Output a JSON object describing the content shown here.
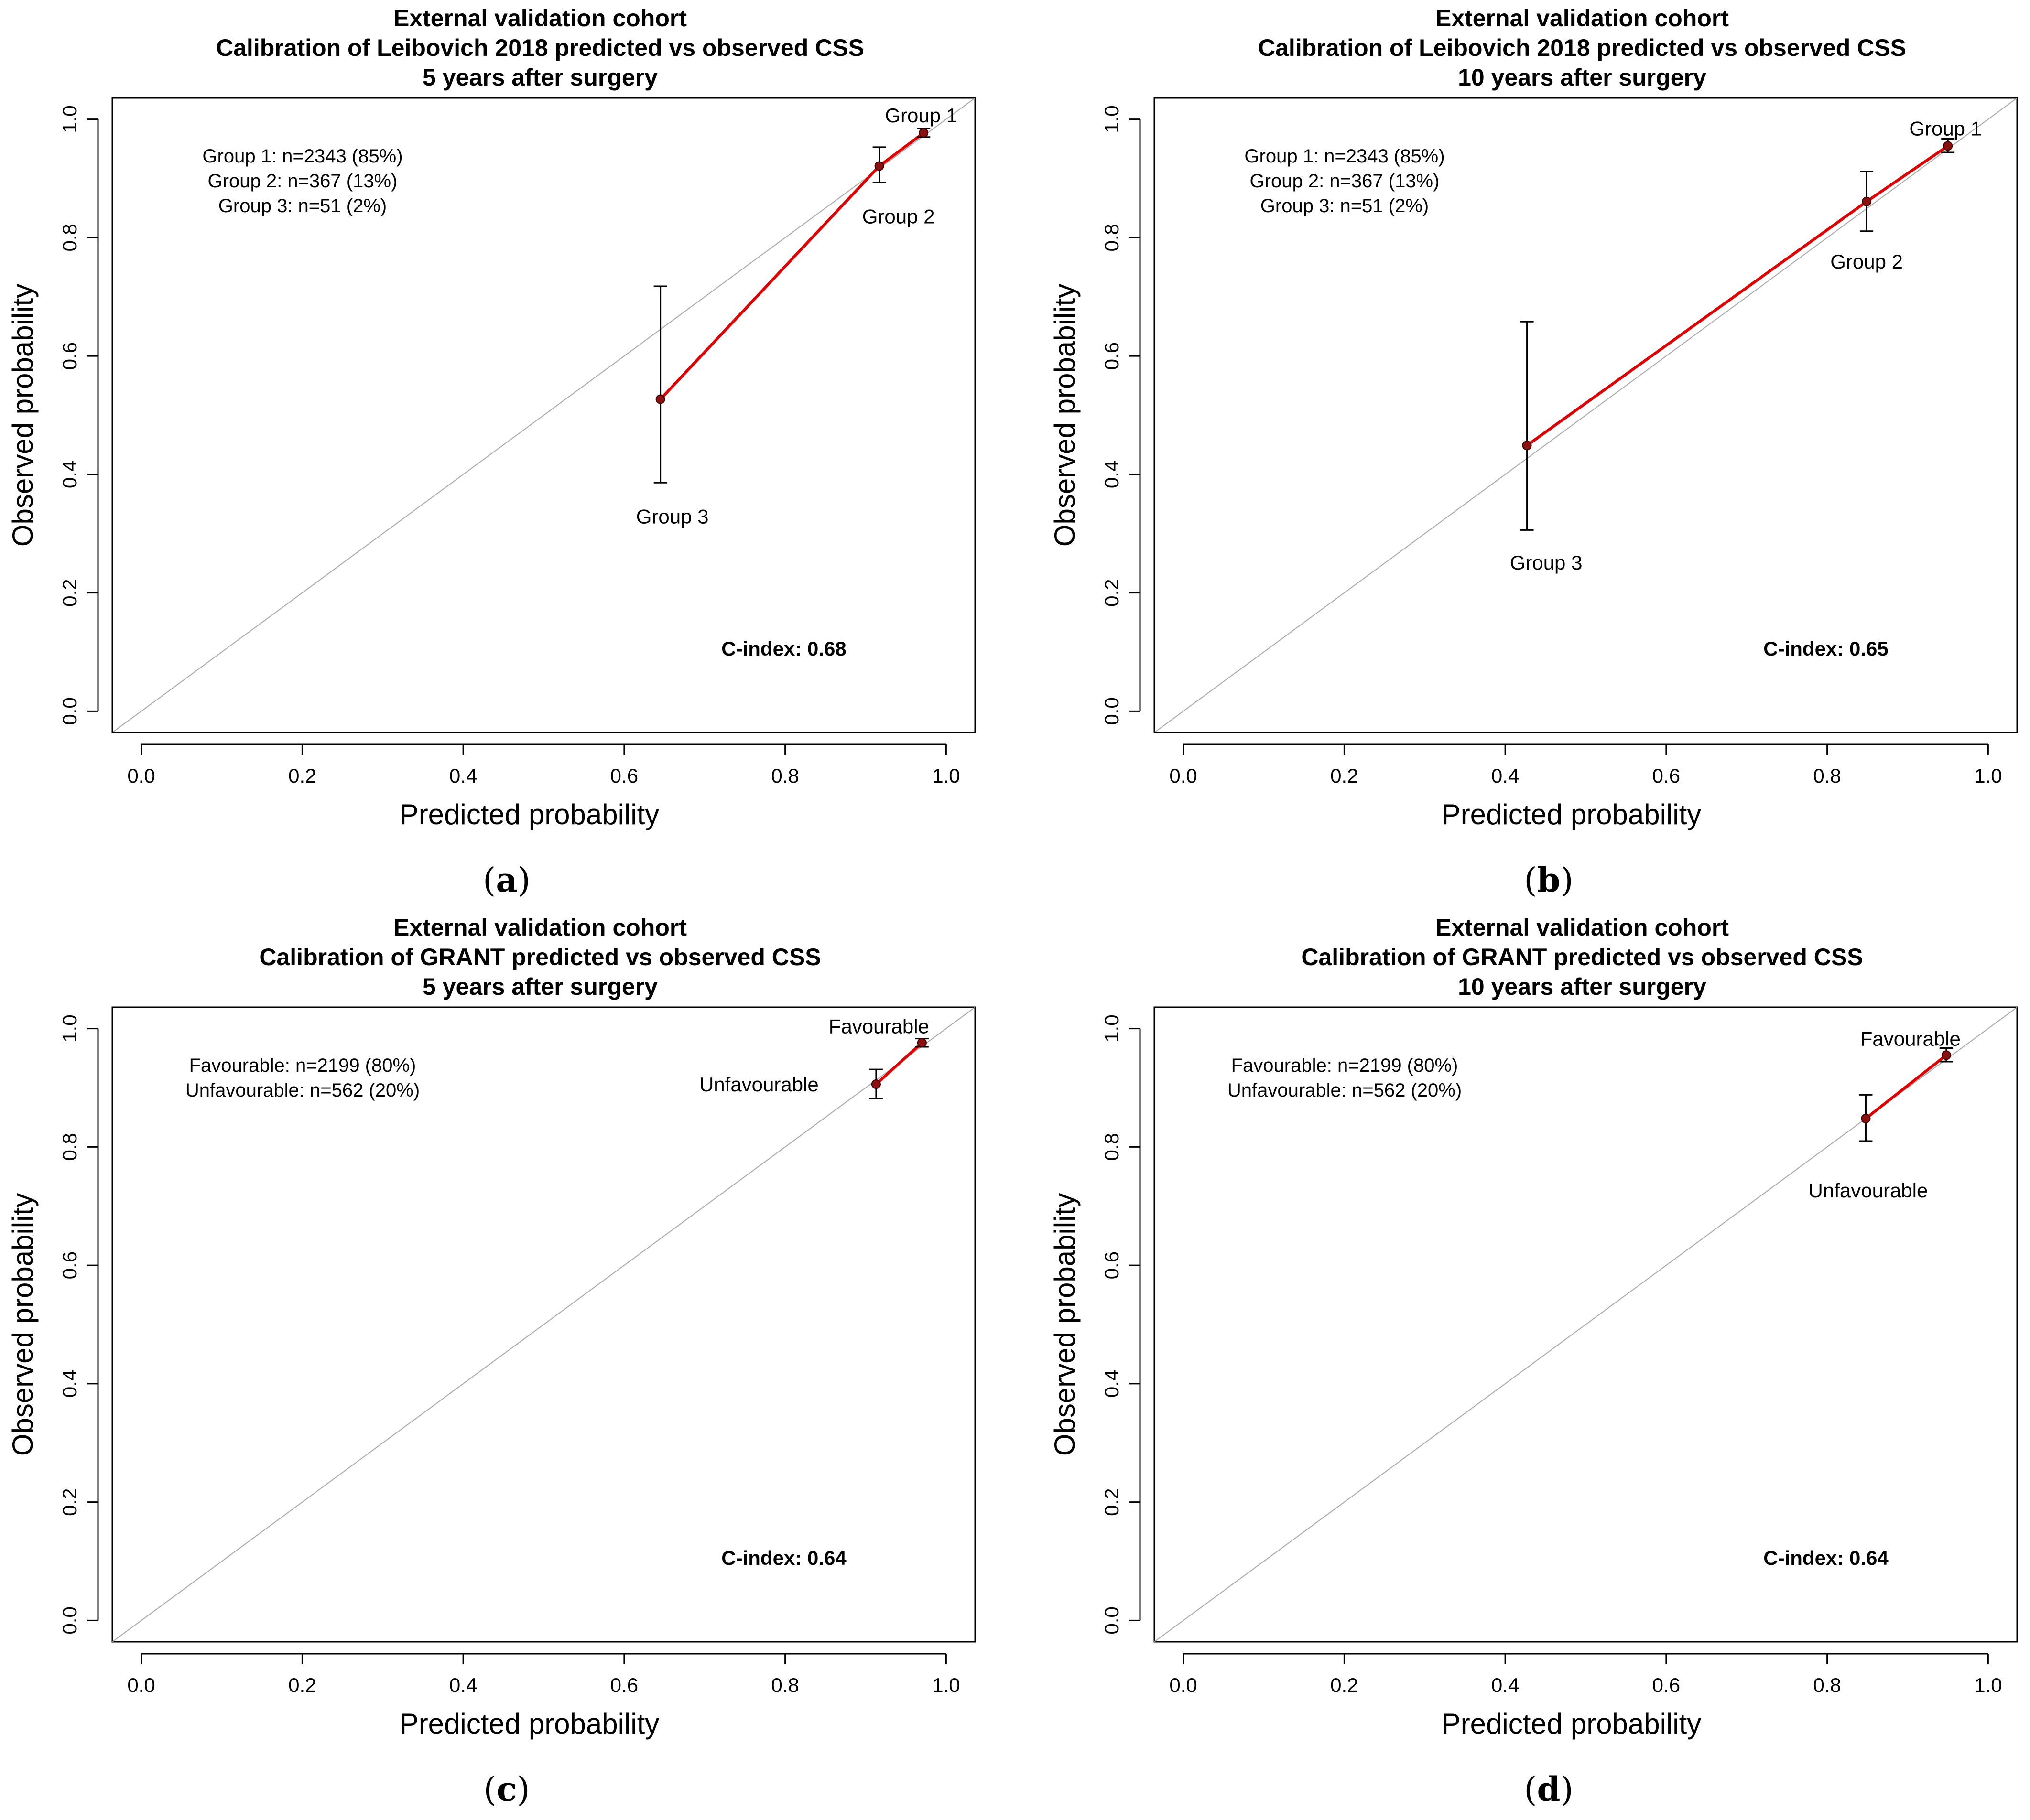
{
  "chart_data": [
    {
      "id": "a",
      "type": "scatter",
      "caption_letter": "a",
      "title_lines": [
        "External validation cohort",
        "Calibration of Leibovich 2018 predicted vs observed CSS",
        "5 years after surgery"
      ],
      "xlabel": "Predicted probability",
      "ylabel": "Observed probability",
      "xlim": [
        0.0,
        1.0
      ],
      "ylim": [
        0.0,
        1.0
      ],
      "x_ticks": [
        "0.0",
        "0.2",
        "0.4",
        "0.6",
        "0.8",
        "1.0"
      ],
      "y_ticks": [
        "0.0",
        "0.2",
        "0.4",
        "0.6",
        "0.8",
        "1.0"
      ],
      "reference_line": "y = x",
      "legend_lines": [
        "Group 1: n=2343 (85%)",
        "Group 2: n=367 (13%)",
        "Group 3: n=51 (2%)"
      ],
      "c_index": "C-index: 0.68",
      "points": [
        {
          "label": "Group 3",
          "x": 0.645,
          "y": 0.527,
          "lo": 0.386,
          "hi": 0.718
        },
        {
          "label": "Group 2",
          "x": 0.917,
          "y": 0.921,
          "lo": 0.893,
          "hi": 0.953
        },
        {
          "label": "Group 1",
          "x": 0.972,
          "y": 0.977,
          "lo": 0.97,
          "hi": 0.984
        }
      ]
    },
    {
      "id": "b",
      "type": "scatter",
      "caption_letter": "b",
      "title_lines": [
        "External validation cohort",
        "Calibration of Leibovich 2018 predicted vs observed CSS",
        "10 years after surgery"
      ],
      "xlabel": "Predicted probability",
      "ylabel": "Observed probability",
      "xlim": [
        0.0,
        1.0
      ],
      "ylim": [
        0.0,
        1.0
      ],
      "x_ticks": [
        "0.0",
        "0.2",
        "0.4",
        "0.6",
        "0.8",
        "1.0"
      ],
      "y_ticks": [
        "0.0",
        "0.2",
        "0.4",
        "0.6",
        "0.8",
        "1.0"
      ],
      "reference_line": "y = x",
      "legend_lines": [
        "Group 1: n=2343 (85%)",
        "Group 2: n=367 (13%)",
        "Group 3: n=51 (2%)"
      ],
      "c_index": "C-index: 0.65",
      "points": [
        {
          "label": "Group 3",
          "x": 0.427,
          "y": 0.449,
          "lo": 0.306,
          "hi": 0.658
        },
        {
          "label": "Group 2",
          "x": 0.849,
          "y": 0.861,
          "lo": 0.811,
          "hi": 0.912
        },
        {
          "label": "Group 1",
          "x": 0.95,
          "y": 0.955,
          "lo": 0.944,
          "hi": 0.967
        }
      ]
    },
    {
      "id": "c",
      "type": "scatter",
      "caption_letter": "c",
      "title_lines": [
        "External validation cohort",
        "Calibration of GRANT predicted vs observed CSS",
        "5 years after surgery"
      ],
      "xlabel": "Predicted probability",
      "ylabel": "Observed probability",
      "xlim": [
        0.0,
        1.0
      ],
      "ylim": [
        0.0,
        1.0
      ],
      "x_ticks": [
        "0.0",
        "0.2",
        "0.4",
        "0.6",
        "0.8",
        "1.0"
      ],
      "y_ticks": [
        "0.0",
        "0.2",
        "0.4",
        "0.6",
        "0.8",
        "1.0"
      ],
      "reference_line": "y = x",
      "legend_lines": [
        "Favourable: n=2199 (80%)",
        "Unfavourable: n=562 (20%)"
      ],
      "c_index": "C-index: 0.64",
      "points": [
        {
          "label": "Unfavourable",
          "x": 0.913,
          "y": 0.906,
          "lo": 0.882,
          "hi": 0.931
        },
        {
          "label": "Favourable",
          "x": 0.97,
          "y": 0.976,
          "lo": 0.969,
          "hi": 0.983
        }
      ]
    },
    {
      "id": "d",
      "type": "scatter",
      "caption_letter": "d",
      "title_lines": [
        "External validation cohort",
        "Calibration of GRANT predicted vs observed CSS",
        "10 years after surgery"
      ],
      "xlabel": "Predicted probability",
      "ylabel": "Observed probability",
      "xlim": [
        0.0,
        1.0
      ],
      "ylim": [
        0.0,
        1.0
      ],
      "x_ticks": [
        "0.0",
        "0.2",
        "0.4",
        "0.6",
        "0.8",
        "1.0"
      ],
      "y_ticks": [
        "0.0",
        "0.2",
        "0.4",
        "0.6",
        "0.8",
        "1.0"
      ],
      "reference_line": "y = x",
      "legend_lines": [
        "Favourable: n=2199 (80%)",
        "Unfavourable: n=562 (20%)"
      ],
      "c_index": "C-index: 0.64",
      "points": [
        {
          "label": "Unfavourable",
          "x": 0.848,
          "y": 0.848,
          "lo": 0.81,
          "hi": 0.888
        },
        {
          "label": "Favourable",
          "x": 0.948,
          "y": 0.955,
          "lo": 0.944,
          "hi": 0.967
        }
      ]
    }
  ],
  "colors": {
    "calibration_line": "#e00000",
    "point_fill": "#8b1010",
    "reference_line": "#a8a8a8",
    "axis": "#000000",
    "text": "#000000"
  }
}
